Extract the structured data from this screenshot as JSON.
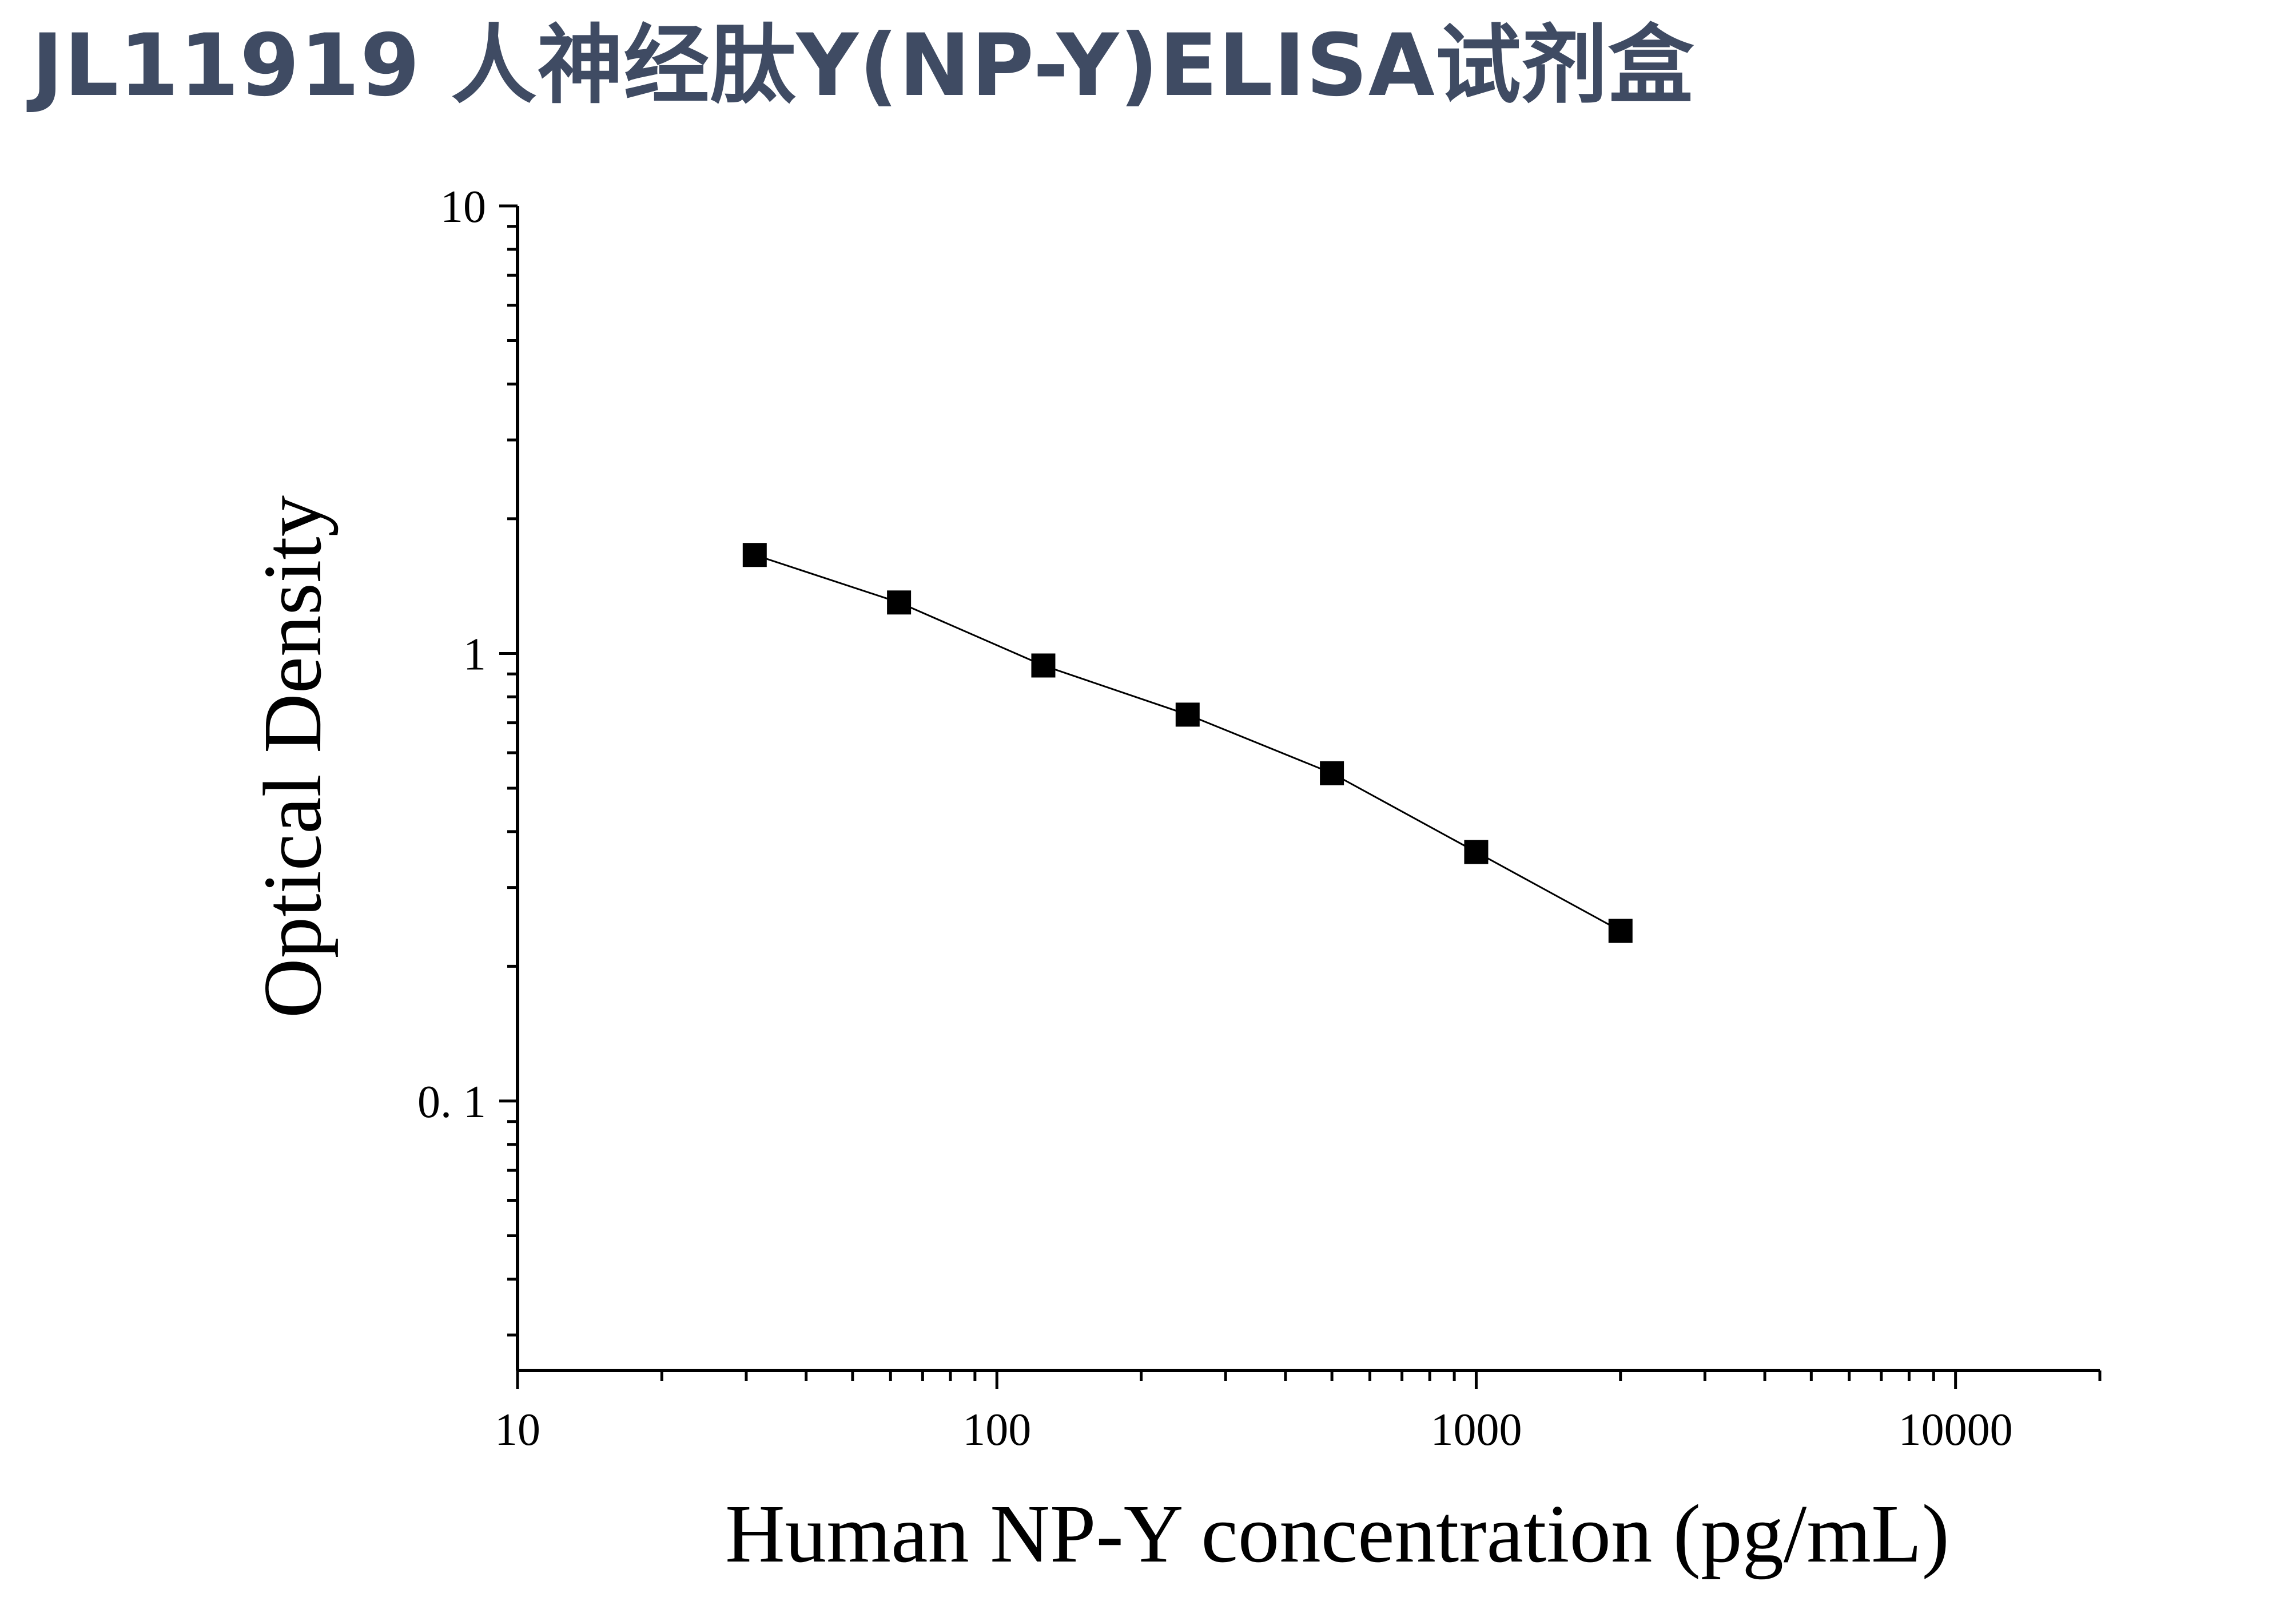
{
  "title": "JL11919 人神经肽Y(NP-Y)ELISA试剂盒",
  "chart_data": {
    "type": "scatter",
    "scale": {
      "x": "log",
      "y": "log"
    },
    "xlabel": "Human NP-Y concentration (pg/mL)",
    "ylabel": "Optical Density",
    "xlim": [
      10,
      20000
    ],
    "ylim": [
      0.025,
      10
    ],
    "x_ticks": [
      {
        "value": 10,
        "label": "10"
      },
      {
        "value": 100,
        "label": "100"
      },
      {
        "value": 1000,
        "label": "1000"
      },
      {
        "value": 10000,
        "label": "10000"
      }
    ],
    "y_ticks": [
      {
        "value": 10,
        "label": "10"
      },
      {
        "value": 1,
        "label": "1"
      },
      {
        "value": 0.1,
        "label": "0. 1"
      }
    ],
    "series": [
      {
        "marker": "square",
        "color": "#000000",
        "fit_line": true,
        "points": [
          {
            "x": 31.25,
            "y": 1.66
          },
          {
            "x": 62.5,
            "y": 1.3
          },
          {
            "x": 125,
            "y": 0.94
          },
          {
            "x": 250,
            "y": 0.73
          },
          {
            "x": 500,
            "y": 0.54
          },
          {
            "x": 1000,
            "y": 0.36
          },
          {
            "x": 2000,
            "y": 0.24
          }
        ]
      }
    ]
  }
}
